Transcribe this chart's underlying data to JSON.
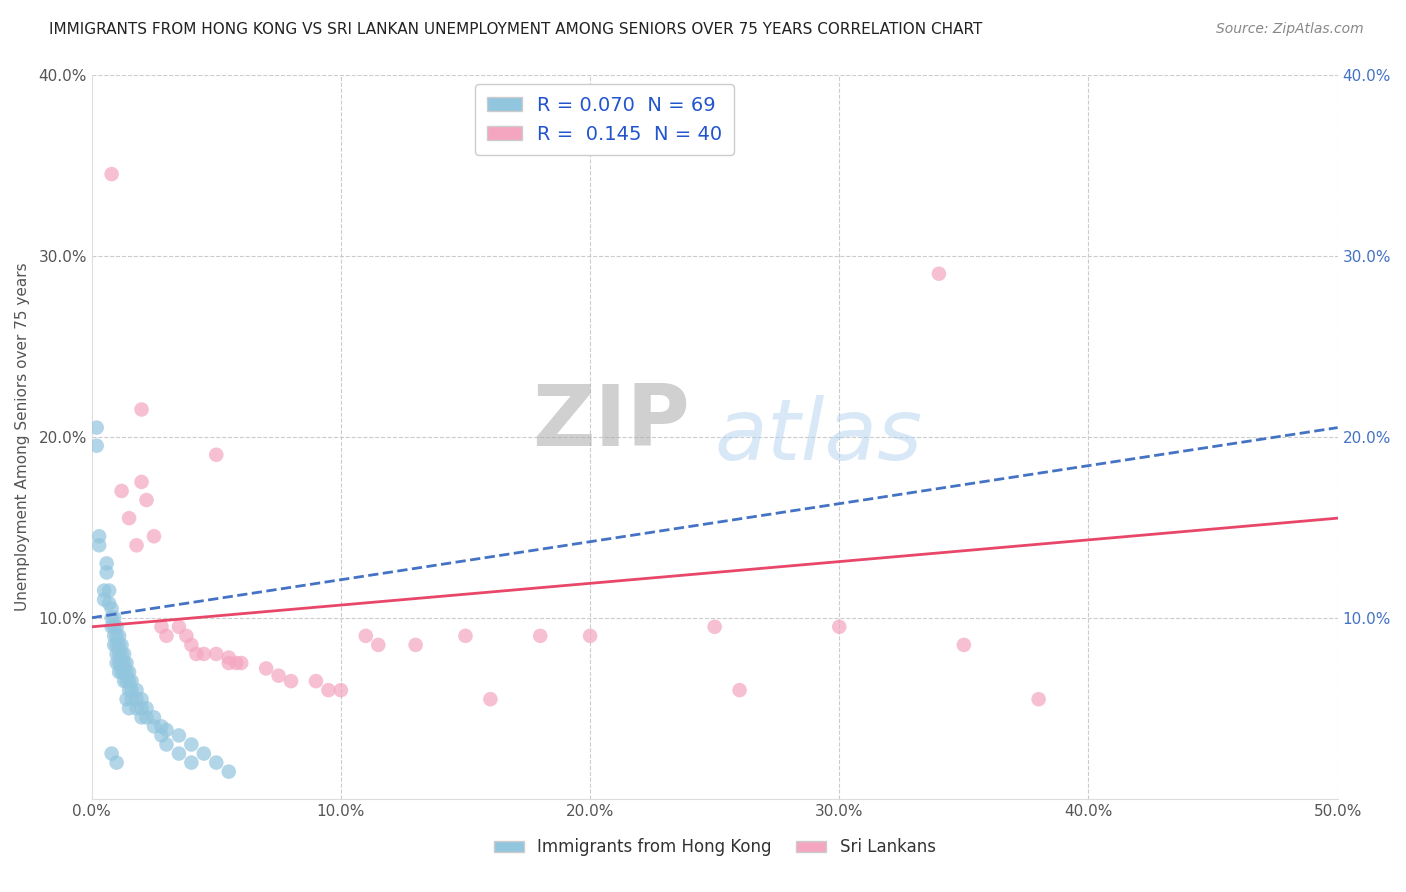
{
  "title": "IMMIGRANTS FROM HONG KONG VS SRI LANKAN UNEMPLOYMENT AMONG SENIORS OVER 75 YEARS CORRELATION CHART",
  "source": "Source: ZipAtlas.com",
  "ylabel": "Unemployment Among Seniors over 75 years",
  "xlim": [
    0.0,
    0.5
  ],
  "ylim": [
    0.0,
    0.4
  ],
  "xtick_labels": [
    "0.0%",
    "10.0%",
    "20.0%",
    "30.0%",
    "40.0%",
    "50.0%"
  ],
  "ytick_labels_left": [
    "",
    "10.0%",
    "20.0%",
    "30.0%",
    "40.0%"
  ],
  "ytick_labels_right": [
    "",
    "10.0%",
    "20.0%",
    "30.0%",
    "40.0%"
  ],
  "R_blue": 0.07,
  "N_blue": 69,
  "R_pink": 0.145,
  "N_pink": 40,
  "watermark_zip": "ZIP",
  "watermark_atlas": "atlas",
  "blue_scatter": [
    [
      0.002,
      0.195
    ],
    [
      0.002,
      0.205
    ],
    [
      0.003,
      0.145
    ],
    [
      0.003,
      0.14
    ],
    [
      0.005,
      0.115
    ],
    [
      0.005,
      0.11
    ],
    [
      0.006,
      0.13
    ],
    [
      0.006,
      0.125
    ],
    [
      0.007,
      0.115
    ],
    [
      0.007,
      0.108
    ],
    [
      0.008,
      0.105
    ],
    [
      0.008,
      0.1
    ],
    [
      0.008,
      0.095
    ],
    [
      0.009,
      0.1
    ],
    [
      0.009,
      0.095
    ],
    [
      0.009,
      0.09
    ],
    [
      0.009,
      0.085
    ],
    [
      0.01,
      0.095
    ],
    [
      0.01,
      0.09
    ],
    [
      0.01,
      0.085
    ],
    [
      0.01,
      0.08
    ],
    [
      0.01,
      0.075
    ],
    [
      0.011,
      0.09
    ],
    [
      0.011,
      0.085
    ],
    [
      0.011,
      0.08
    ],
    [
      0.011,
      0.075
    ],
    [
      0.011,
      0.07
    ],
    [
      0.012,
      0.085
    ],
    [
      0.012,
      0.08
    ],
    [
      0.012,
      0.075
    ],
    [
      0.012,
      0.07
    ],
    [
      0.013,
      0.08
    ],
    [
      0.013,
      0.075
    ],
    [
      0.013,
      0.07
    ],
    [
      0.013,
      0.065
    ],
    [
      0.014,
      0.075
    ],
    [
      0.014,
      0.07
    ],
    [
      0.014,
      0.065
    ],
    [
      0.014,
      0.055
    ],
    [
      0.015,
      0.07
    ],
    [
      0.015,
      0.065
    ],
    [
      0.015,
      0.06
    ],
    [
      0.015,
      0.05
    ],
    [
      0.016,
      0.065
    ],
    [
      0.016,
      0.06
    ],
    [
      0.016,
      0.055
    ],
    [
      0.018,
      0.06
    ],
    [
      0.018,
      0.055
    ],
    [
      0.018,
      0.05
    ],
    [
      0.02,
      0.055
    ],
    [
      0.02,
      0.05
    ],
    [
      0.02,
      0.045
    ],
    [
      0.022,
      0.05
    ],
    [
      0.022,
      0.045
    ],
    [
      0.025,
      0.045
    ],
    [
      0.025,
      0.04
    ],
    [
      0.028,
      0.04
    ],
    [
      0.028,
      0.035
    ],
    [
      0.03,
      0.038
    ],
    [
      0.03,
      0.03
    ],
    [
      0.035,
      0.035
    ],
    [
      0.035,
      0.025
    ],
    [
      0.04,
      0.03
    ],
    [
      0.04,
      0.02
    ],
    [
      0.045,
      0.025
    ],
    [
      0.05,
      0.02
    ],
    [
      0.055,
      0.015
    ],
    [
      0.008,
      0.025
    ],
    [
      0.01,
      0.02
    ]
  ],
  "pink_scatter": [
    [
      0.008,
      0.345
    ],
    [
      0.012,
      0.17
    ],
    [
      0.015,
      0.155
    ],
    [
      0.018,
      0.14
    ],
    [
      0.02,
      0.215
    ],
    [
      0.02,
      0.175
    ],
    [
      0.022,
      0.165
    ],
    [
      0.025,
      0.145
    ],
    [
      0.028,
      0.095
    ],
    [
      0.03,
      0.09
    ],
    [
      0.035,
      0.095
    ],
    [
      0.038,
      0.09
    ],
    [
      0.04,
      0.085
    ],
    [
      0.042,
      0.08
    ],
    [
      0.045,
      0.08
    ],
    [
      0.05,
      0.08
    ],
    [
      0.055,
      0.078
    ],
    [
      0.055,
      0.075
    ],
    [
      0.058,
      0.075
    ],
    [
      0.06,
      0.075
    ],
    [
      0.07,
      0.072
    ],
    [
      0.075,
      0.068
    ],
    [
      0.08,
      0.065
    ],
    [
      0.09,
      0.065
    ],
    [
      0.095,
      0.06
    ],
    [
      0.1,
      0.06
    ],
    [
      0.11,
      0.09
    ],
    [
      0.115,
      0.085
    ],
    [
      0.13,
      0.085
    ],
    [
      0.15,
      0.09
    ],
    [
      0.18,
      0.09
    ],
    [
      0.2,
      0.09
    ],
    [
      0.25,
      0.095
    ],
    [
      0.3,
      0.095
    ],
    [
      0.35,
      0.085
    ],
    [
      0.38,
      0.055
    ],
    [
      0.34,
      0.29
    ],
    [
      0.05,
      0.19
    ],
    [
      0.16,
      0.055
    ],
    [
      0.26,
      0.06
    ]
  ],
  "dot_size": 110,
  "blue_color": "#92C5DE",
  "pink_color": "#F4A6C0",
  "blue_line_color": "#4472C4",
  "pink_line_color": "#E8476A",
  "grid_color": "#CCCCCC",
  "background_color": "#FFFFFF",
  "title_fontsize": 11,
  "source_fontsize": 10,
  "tick_fontsize": 11,
  "ylabel_fontsize": 11,
  "legend_fontsize": 14
}
